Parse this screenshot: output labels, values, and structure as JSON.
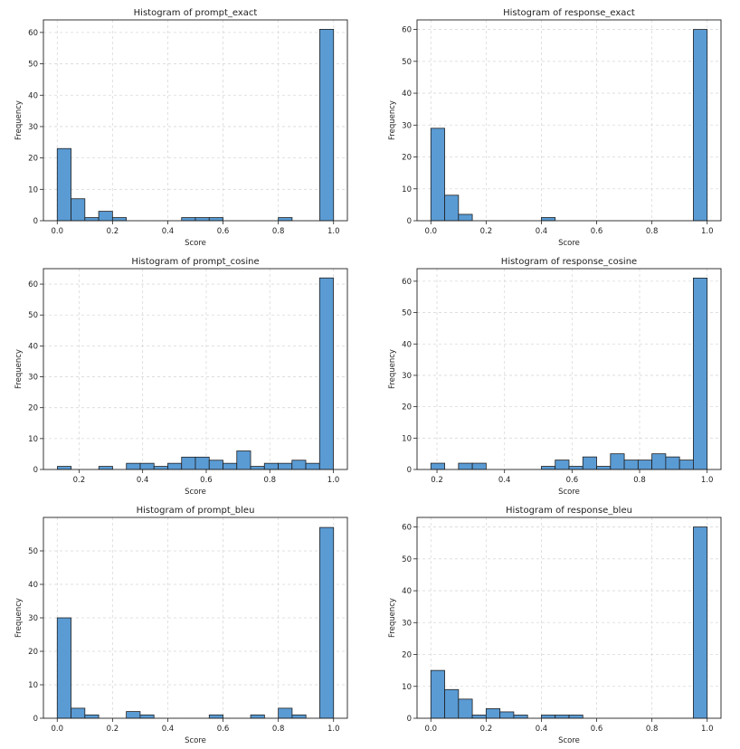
{
  "chart_data": [
    {
      "type": "bar",
      "title": "Histogram of prompt_exact",
      "xlabel": "Score",
      "ylabel": "Frequency",
      "xlim": [
        -0.05,
        1.05
      ],
      "ylim": [
        0,
        64
      ],
      "xticks": [
        0.0,
        0.2,
        0.4,
        0.6,
        0.8,
        1.0
      ],
      "xtick_labels": [
        "0.0",
        "0.2",
        "0.4",
        "0.6",
        "0.8",
        "1.0"
      ],
      "yticks": [
        0,
        10,
        20,
        30,
        40,
        50,
        60
      ],
      "grid": true,
      "bin_edges": [
        0.0,
        0.05,
        0.1,
        0.15,
        0.2,
        0.25,
        0.3,
        0.35,
        0.4,
        0.45,
        0.5,
        0.55,
        0.6,
        0.65,
        0.7,
        0.75,
        0.8,
        0.85,
        0.9,
        0.95,
        1.0
      ],
      "values": [
        23,
        7,
        1,
        3,
        1,
        0,
        0,
        0,
        0,
        1,
        1,
        1,
        0,
        0,
        0,
        0,
        1,
        0,
        0,
        61
      ]
    },
    {
      "type": "bar",
      "title": "Histogram of response_exact",
      "xlabel": "Score",
      "ylabel": "Frequency",
      "xlim": [
        -0.05,
        1.05
      ],
      "ylim": [
        0,
        63
      ],
      "xticks": [
        0.0,
        0.2,
        0.4,
        0.6,
        0.8,
        1.0
      ],
      "xtick_labels": [
        "0.0",
        "0.2",
        "0.4",
        "0.6",
        "0.8",
        "1.0"
      ],
      "yticks": [
        0,
        10,
        20,
        30,
        40,
        50,
        60
      ],
      "grid": true,
      "bin_edges": [
        0.0,
        0.05,
        0.1,
        0.15,
        0.2,
        0.25,
        0.3,
        0.35,
        0.4,
        0.45,
        0.5,
        0.55,
        0.6,
        0.65,
        0.7,
        0.75,
        0.8,
        0.85,
        0.9,
        0.95,
        1.0
      ],
      "values": [
        29,
        8,
        2,
        0,
        0,
        0,
        0,
        0,
        1,
        0,
        0,
        0,
        0,
        0,
        0,
        0,
        0,
        0,
        0,
        60
      ]
    },
    {
      "type": "bar",
      "title": "Histogram of prompt_cosine",
      "xlabel": "Score",
      "ylabel": "Frequency",
      "xlim": [
        0.088,
        1.044
      ],
      "ylim": [
        0,
        65
      ],
      "xticks": [
        0.2,
        0.4,
        0.6,
        0.8,
        1.0
      ],
      "xtick_labels": [
        "0.2",
        "0.4",
        "0.6",
        "0.8",
        "1.0"
      ],
      "yticks": [
        0,
        10,
        20,
        30,
        40,
        50,
        60
      ],
      "grid": true,
      "bin_edges": [
        0.132,
        0.1754,
        0.2188,
        0.2622,
        0.3056,
        0.349,
        0.3924,
        0.4358,
        0.4792,
        0.5226,
        0.566,
        0.6094,
        0.6528,
        0.6962,
        0.7396,
        0.783,
        0.8264,
        0.8698,
        0.9132,
        0.9566,
        1.0
      ],
      "values": [
        1,
        0,
        0,
        1,
        0,
        2,
        2,
        1,
        2,
        4,
        4,
        3,
        2,
        6,
        1,
        2,
        2,
        3,
        2,
        62
      ]
    },
    {
      "type": "bar",
      "title": "Histogram of response_cosine",
      "xlabel": "Score",
      "ylabel": "Frequency",
      "xlim": [
        0.141,
        1.041
      ],
      "ylim": [
        0,
        64
      ],
      "xticks": [
        0.2,
        0.4,
        0.6,
        0.8,
        1.0
      ],
      "xtick_labels": [
        "0.2",
        "0.4",
        "0.6",
        "0.8",
        "1.0"
      ],
      "yticks": [
        0,
        10,
        20,
        30,
        40,
        50,
        60
      ],
      "grid": true,
      "bin_edges": [
        0.182,
        0.2229,
        0.2638,
        0.3047,
        0.3456,
        0.3865,
        0.4274,
        0.4683,
        0.5092,
        0.5501,
        0.591,
        0.6319,
        0.6728,
        0.7137,
        0.7546,
        0.7955,
        0.8364,
        0.8773,
        0.9182,
        0.9591,
        1.0
      ],
      "values": [
        2,
        0,
        2,
        2,
        0,
        0,
        0,
        0,
        1,
        3,
        1,
        4,
        1,
        5,
        3,
        3,
        5,
        4,
        3,
        61
      ]
    },
    {
      "type": "bar",
      "title": "Histogram of prompt_bleu",
      "xlabel": "Score",
      "ylabel": "Frequency",
      "xlim": [
        -0.05,
        1.05
      ],
      "ylim": [
        0,
        60
      ],
      "xticks": [
        0.0,
        0.2,
        0.4,
        0.6,
        0.8,
        1.0
      ],
      "xtick_labels": [
        "0.0",
        "0.2",
        "0.4",
        "0.6",
        "0.8",
        "1.0"
      ],
      "yticks": [
        0,
        10,
        20,
        30,
        40,
        50
      ],
      "grid": true,
      "bin_edges": [
        0.0,
        0.05,
        0.1,
        0.15,
        0.2,
        0.25,
        0.3,
        0.35,
        0.4,
        0.45,
        0.5,
        0.55,
        0.6,
        0.65,
        0.7,
        0.75,
        0.8,
        0.85,
        0.9,
        0.95,
        1.0
      ],
      "values": [
        30,
        3,
        1,
        0,
        0,
        2,
        1,
        0,
        0,
        0,
        0,
        1,
        0,
        0,
        1,
        0,
        3,
        1,
        0,
        57
      ]
    },
    {
      "type": "bar",
      "title": "Histogram of response_bleu",
      "xlabel": "Score",
      "ylabel": "Frequency",
      "xlim": [
        -0.05,
        1.05
      ],
      "ylim": [
        0,
        63
      ],
      "xticks": [
        0.0,
        0.2,
        0.4,
        0.6,
        0.8,
        1.0
      ],
      "xtick_labels": [
        "0.0",
        "0.2",
        "0.4",
        "0.6",
        "0.8",
        "1.0"
      ],
      "yticks": [
        0,
        10,
        20,
        30,
        40,
        50,
        60
      ],
      "grid": true,
      "bin_edges": [
        0.0,
        0.05,
        0.1,
        0.15,
        0.2,
        0.25,
        0.3,
        0.35,
        0.4,
        0.45,
        0.5,
        0.55,
        0.6,
        0.65,
        0.7,
        0.75,
        0.8,
        0.85,
        0.9,
        0.95,
        1.0
      ],
      "values": [
        15,
        9,
        6,
        1,
        3,
        2,
        1,
        0,
        1,
        1,
        1,
        0,
        0,
        0,
        0,
        0,
        0,
        0,
        0,
        60
      ]
    }
  ],
  "style": {
    "bar_fill": "#5a9bd4",
    "bar_edge": "#1f1f1f",
    "grid_color": "#d9d9d9",
    "axis_color": "#222222"
  }
}
